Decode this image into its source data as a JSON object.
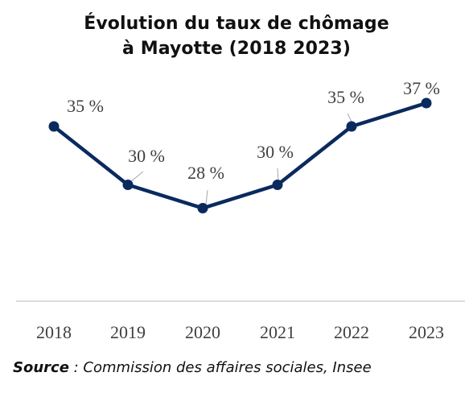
{
  "title_line1": "Évolution du taux de chômage",
  "title_line2": "à Mayotte (2018 2023)",
  "source": {
    "label": "Source",
    "text": " : Commission des affaires sociales, Insee"
  },
  "colors": {
    "line": "#0a2a5e",
    "axis": "#c8c8c8",
    "label": "#404040",
    "leader": "#a6a6a6"
  },
  "chart_data": {
    "type": "line",
    "categories": [
      "2018",
      "2019",
      "2020",
      "2021",
      "2022",
      "2023"
    ],
    "values": [
      35,
      30,
      28,
      30,
      35,
      37
    ],
    "data_labels": [
      "35 %",
      "30 %",
      "28 %",
      "30 %",
      "35 %",
      "37 %"
    ],
    "grid": false,
    "legend": "none"
  }
}
